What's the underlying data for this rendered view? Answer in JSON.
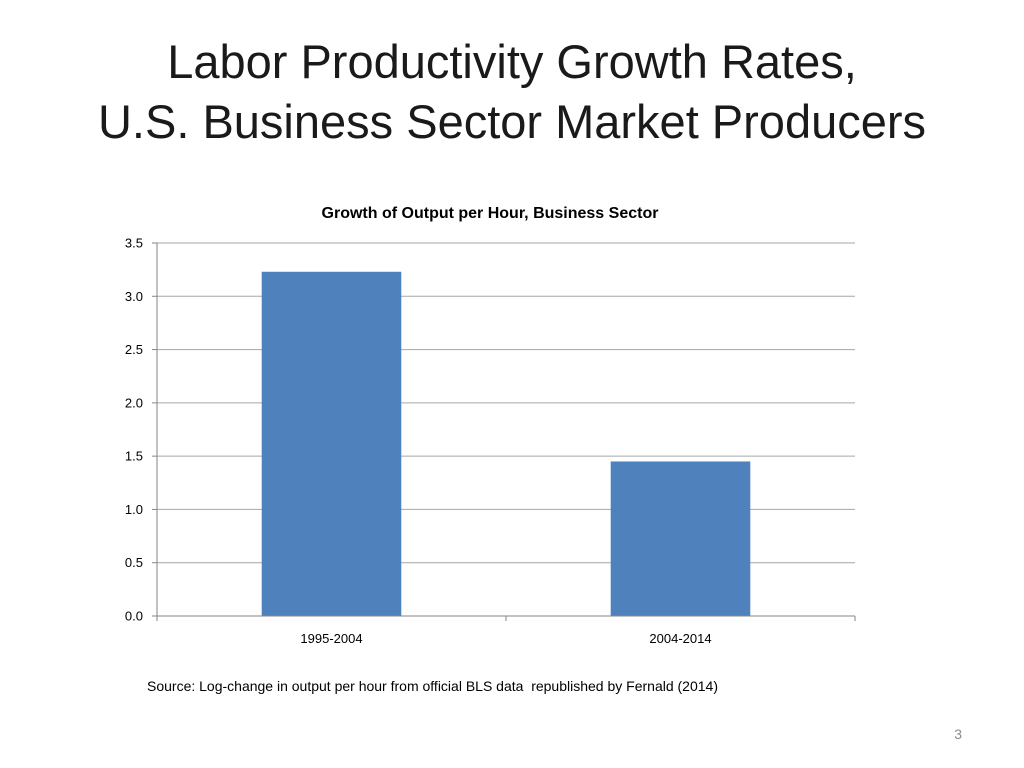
{
  "slide": {
    "title_line1": "Labor Productivity Growth Rates,",
    "title_line2": "U.S. Business Sector Market Producers",
    "source": "Source: Log-change in output per hour from official BLS data  republished by Fernald (2014)",
    "page_number": "3"
  },
  "chart_data": {
    "type": "bar",
    "title": "Growth of Output per Hour, Business Sector",
    "xlabel": "",
    "ylabel": "",
    "categories": [
      "1995-2004",
      "2004-2014"
    ],
    "values": [
      3.23,
      1.45
    ],
    "ylim": [
      0,
      3.5
    ],
    "yticks": [
      0,
      0.5,
      1,
      1.5,
      2,
      2.5,
      3,
      3.5
    ],
    "ytick_labels": [
      "0.0",
      "0.5",
      "1.0",
      "1.5",
      "2.0",
      "2.5",
      "3.0",
      "3.5"
    ],
    "grid": true,
    "legend": "none",
    "bar_color": "#4f81bd",
    "grid_color": "#a6a6a6"
  }
}
